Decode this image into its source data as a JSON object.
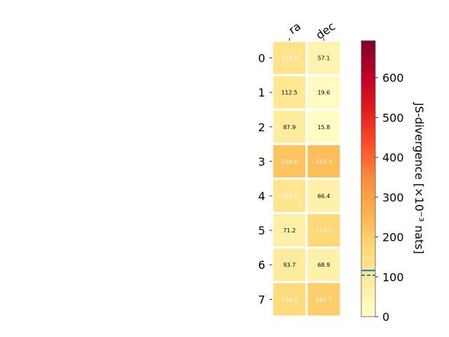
{
  "chart_data": {
    "type": "heatmap",
    "title": "",
    "columns": [
      "ra",
      "dec"
    ],
    "rows": [
      "0",
      "1",
      "2",
      "3",
      "4",
      "5",
      "6",
      "7"
    ],
    "values": [
      [
        129.0,
        57.1
      ],
      [
        112.5,
        19.6
      ],
      [
        87.9,
        15.8
      ],
      [
        219.6,
        233.3
      ],
      [
        120.3,
        66.4
      ],
      [
        71.2,
        172.1
      ],
      [
        93.7,
        68.9
      ],
      [
        159.3,
        197.7
      ]
    ],
    "colorbar": {
      "label": "JS-divergence [×10⁻³ nats]",
      "min": 0,
      "max": 693,
      "ticks": [
        0,
        100,
        200,
        300,
        400,
        500,
        600
      ],
      "colormap": "YlOrRd",
      "solid_line": 116,
      "dashed_line": 104,
      "line_color": "#1f77b4"
    },
    "light_label_threshold": 115
  }
}
